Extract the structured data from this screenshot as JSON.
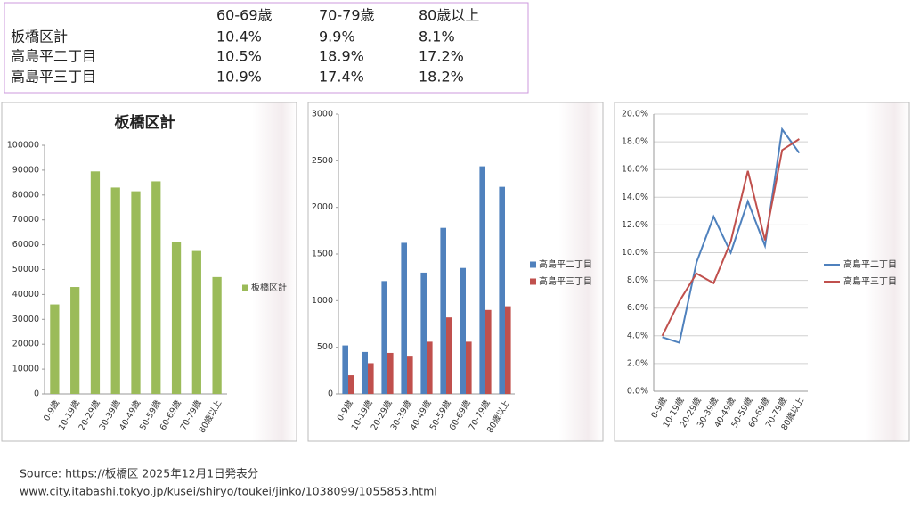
{
  "table": {
    "columns": [
      "60-69歳",
      "70-79歳",
      "80歳以上"
    ],
    "rows": [
      {
        "label": "板橋区計",
        "cells": [
          "10.4%",
          "9.9%",
          "8.1%"
        ]
      },
      {
        "label": "高島平二丁目",
        "cells": [
          "10.5%",
          "18.9%",
          "17.2%"
        ]
      },
      {
        "label": "高島平三丁目",
        "cells": [
          "10.9%",
          "17.4%",
          "18.2%"
        ]
      }
    ]
  },
  "chart_data": [
    {
      "type": "bar",
      "title": "板橋区計",
      "categories": [
        "0-9歳",
        "10-19歳",
        "20-29歳",
        "30-39歳",
        "40-49歳",
        "50-59歳",
        "60-69歳",
        "70-79歳",
        "80歳以上"
      ],
      "series": [
        {
          "name": "板橋区計",
          "color": "#9bbb59",
          "values": [
            36000,
            43000,
            89500,
            83000,
            81500,
            85500,
            61000,
            57500,
            47000
          ]
        }
      ],
      "ylim": [
        0,
        100000
      ],
      "yticks": [
        0,
        10000,
        20000,
        30000,
        40000,
        50000,
        60000,
        70000,
        80000,
        90000,
        100000
      ],
      "grid": false,
      "legend": "right"
    },
    {
      "type": "bar",
      "categories": [
        "0-9歳",
        "10-19歳",
        "20-29歳",
        "30-39歳",
        "40-49歳",
        "50-59歳",
        "60-69歳",
        "70-79歳",
        "80歳以上"
      ],
      "series": [
        {
          "name": "高島平二丁目",
          "color": "#4f81bd",
          "values": [
            520,
            450,
            1210,
            1620,
            1300,
            1780,
            1350,
            2440,
            2220
          ]
        },
        {
          "name": "高島平三丁目",
          "color": "#c0504d",
          "values": [
            200,
            330,
            440,
            400,
            560,
            820,
            560,
            900,
            940
          ]
        }
      ],
      "ylim": [
        0,
        3000
      ],
      "yticks": [
        0,
        500,
        1000,
        1500,
        2000,
        2500,
        3000
      ],
      "grid": false,
      "legend": "right"
    },
    {
      "type": "line",
      "categories": [
        "0-9歳",
        "10-19歳",
        "20-29歳",
        "30-39歳",
        "40-49歳",
        "50-59歳",
        "60-69歳",
        "70-79歳",
        "80歳以上"
      ],
      "series": [
        {
          "name": "高島平二丁目",
          "color": "#4f81bd",
          "values": [
            3.9,
            3.5,
            9.3,
            12.6,
            10.0,
            13.7,
            10.5,
            18.9,
            17.2
          ]
        },
        {
          "name": "高島平三丁目",
          "color": "#c0504d",
          "values": [
            4.0,
            6.5,
            8.5,
            7.8,
            10.8,
            15.9,
            10.9,
            17.4,
            18.2
          ]
        }
      ],
      "ylim": [
        0,
        20
      ],
      "yticks": [
        {
          "value": 0,
          "label": "0.0%"
        },
        {
          "value": 2,
          "label": "2.0%"
        },
        {
          "value": 4,
          "label": "4.0%"
        },
        {
          "value": 6,
          "label": "6.0%"
        },
        {
          "value": 8,
          "label": "8.0%"
        },
        {
          "value": 10,
          "label": "10.0%"
        },
        {
          "value": 12,
          "label": "12.0%"
        },
        {
          "value": 14,
          "label": "14.0%"
        },
        {
          "value": 16,
          "label": "16.0%"
        },
        {
          "value": 18,
          "label": "18.0%"
        },
        {
          "value": 20,
          "label": "20.0%"
        }
      ],
      "grid": true,
      "legend": "right"
    }
  ],
  "source": [
    "Source: https://板橋区  2025年12月1日発表分",
    "www.city.itabashi.tokyo.jp/kusei/shiryo/toukei/jinko/1038099/1055853.html"
  ]
}
